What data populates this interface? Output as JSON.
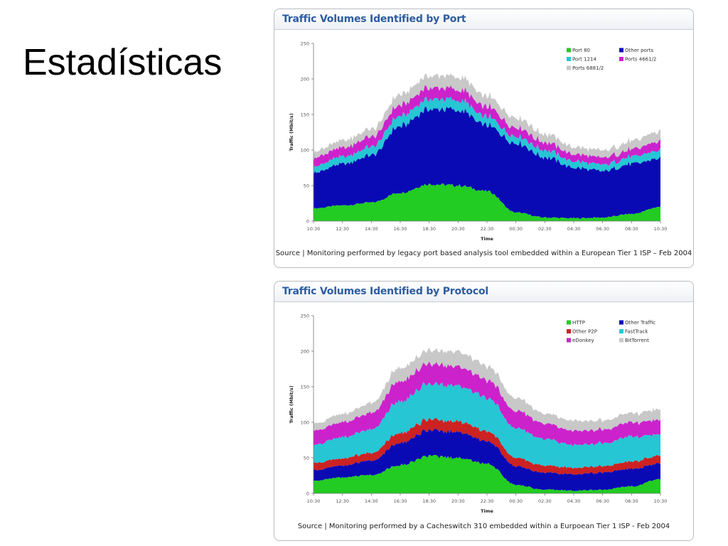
{
  "slide": {
    "title": "Estadísticas"
  },
  "chart_data": [
    {
      "type": "area",
      "stacked": true,
      "title": "Traffic Volumes Identified by Port",
      "xlabel": "Time",
      "ylabel": "Traffic (Mbit/s)",
      "ylim": [
        0,
        250
      ],
      "yticks": [
        "0",
        "50",
        "100",
        "150",
        "200",
        "250"
      ],
      "x": [
        "10:30",
        "12:30",
        "14:30",
        "16:30",
        "18:30",
        "20:30",
        "22:30",
        "00:30",
        "02:30",
        "04:30",
        "06:30",
        "08:30",
        "10:30"
      ],
      "source": "Source | Monitoring performed by legacy port based analysis tool embedded within a European Tier 1 ISP – Feb 2004",
      "grid": false,
      "legend_position": "top-right",
      "legend_order": [
        "Port 80",
        "Other ports",
        "Port 1214",
        "Ports 4661/2",
        "Ports 6881/2"
      ],
      "series": [
        {
          "name": "Port 80",
          "color": "#22cc22",
          "values": [
            18,
            22,
            26,
            40,
            52,
            50,
            42,
            12,
            5,
            4,
            5,
            10,
            20
          ]
        },
        {
          "name": "Other ports",
          "color": "#0a0ab5",
          "values": [
            50,
            58,
            66,
            94,
            106,
            106,
            92,
            98,
            85,
            71,
            65,
            70,
            68
          ]
        },
        {
          "name": "Port 1214",
          "color": "#26c6d4",
          "values": [
            9,
            10,
            12,
            14,
            14,
            14,
            12,
            10,
            10,
            9,
            9,
            10,
            11
          ]
        },
        {
          "name": "Ports 4661/2",
          "color": "#cc22cc",
          "values": [
            12,
            13,
            14,
            15,
            16,
            15,
            14,
            12,
            11,
            10,
            10,
            10,
            13
          ]
        },
        {
          "name": "Ports 6881/2",
          "color": "#c8c8c8",
          "values": [
            9,
            10,
            11,
            15,
            17,
            18,
            15,
            14,
            12,
            10,
            10,
            12,
            14
          ]
        }
      ]
    },
    {
      "type": "area",
      "stacked": true,
      "title": "Traffic Volumes Identified by Protocol",
      "xlabel": "Time",
      "ylabel": "Traffic (Mbit/s)",
      "ylim": [
        0,
        250
      ],
      "yticks": [
        "0",
        "50",
        "100",
        "150",
        "200",
        "250"
      ],
      "x": [
        "10:30",
        "12:30",
        "14:30",
        "16:30",
        "18:30",
        "20:30",
        "22:30",
        "00:30",
        "02:30",
        "04:30",
        "06:30",
        "08:30",
        "10:30"
      ],
      "source": "Source | Monitoring performed by a Cacheswitch 310 embedded within a Eurpoean Tier 1 ISP - Feb 2004",
      "grid": false,
      "legend_position": "top-right",
      "legend_order": [
        "HTTP",
        "Other Traffic",
        "Other P2P",
        "FastTrack",
        "eDonkey",
        "BitTorrent"
      ],
      "series": [
        {
          "name": "HTTP",
          "color": "#22cc22",
          "values": [
            18,
            22,
            26,
            40,
            52,
            50,
            42,
            12,
            5,
            4,
            5,
            10,
            20
          ]
        },
        {
          "name": "Other Traffic",
          "color": "#0a0ab5",
          "values": [
            15,
            17,
            20,
            32,
            36,
            36,
            32,
            26,
            24,
            23,
            24,
            25,
            22
          ]
        },
        {
          "name": "Other P2P",
          "color": "#cc2222",
          "values": [
            10,
            10,
            11,
            14,
            15,
            15,
            14,
            12,
            10,
            9,
            9,
            10,
            11
          ]
        },
        {
          "name": "FastTrack",
          "color": "#26c6d4",
          "values": [
            25,
            30,
            33,
            45,
            50,
            50,
            47,
            42,
            37,
            32,
            32,
            35,
            30
          ]
        },
        {
          "name": "eDonkey",
          "color": "#cc22cc",
          "values": [
            20,
            21,
            23,
            28,
            28,
            27,
            25,
            24,
            22,
            20,
            19,
            20,
            20
          ]
        },
        {
          "name": "BitTorrent",
          "color": "#c8c8c8",
          "values": [
            10,
            12,
            14,
            19,
            19,
            21,
            20,
            18,
            14,
            14,
            13,
            13,
            15
          ]
        }
      ]
    }
  ]
}
